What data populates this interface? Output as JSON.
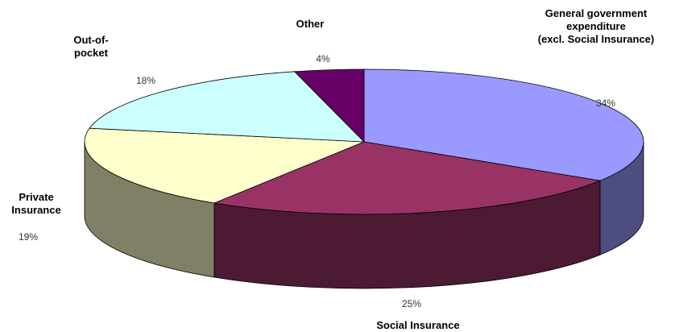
{
  "chart_data": {
    "type": "pie",
    "title": "",
    "slices": [
      {
        "label": "General government expenditure (excl. Social Insurance)",
        "label_lines": [
          "General government",
          "expenditure",
          "(excl. Social Insurance)"
        ],
        "value": 34,
        "value_label": "34%",
        "color": "#9999ff",
        "side_color": "#4d4d80"
      },
      {
        "label": "Social Insurance",
        "label_lines": [
          "Social Insurance"
        ],
        "value": 25,
        "value_label": "25%",
        "color": "#993366",
        "side_color": "#4d1a33"
      },
      {
        "label": "Private Insurance",
        "label_lines": [
          "Private",
          "Insurance"
        ],
        "value": 19,
        "value_label": "19%",
        "color": "#ffffcc",
        "side_color": "#808066"
      },
      {
        "label": "Out-of-pocket",
        "label_lines": [
          "Out-of-",
          "pocket"
        ],
        "value": 18,
        "value_label": "18%",
        "color": "#ccffff",
        "side_color": "#668080"
      },
      {
        "label": "Other",
        "label_lines": [
          "Other"
        ],
        "value": 4,
        "value_label": "4%",
        "color": "#660066",
        "side_color": "#330033"
      }
    ],
    "legend": "none",
    "style": "3d-exploded-perspective"
  }
}
